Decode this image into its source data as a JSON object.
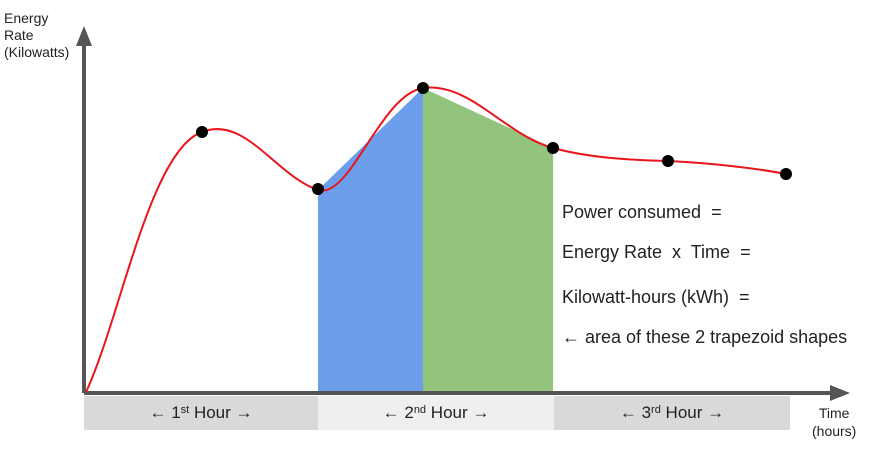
{
  "axes": {
    "y_label_line1": "Energy",
    "y_label_line2": "Rate",
    "y_label_line3": "(Kilowatts)",
    "x_label_line1": "Time",
    "x_label_line2": "(hours)"
  },
  "bands": [
    {
      "prefix": "← 1",
      "sup": "st",
      "suffix": " Hour →"
    },
    {
      "prefix": "← 2",
      "sup": "nd",
      "suffix": " Hour →"
    },
    {
      "prefix": "← 3",
      "sup": "rd",
      "suffix": " Hour →"
    }
  ],
  "notes": {
    "line1": "Power consumed  =",
    "line2": "Energy Rate  x  Time  =",
    "line3": "Kilowatt-hours (kWh)  =",
    "line4": "← area of these 2 trapezoid shapes"
  },
  "colors": {
    "curve": "#e8161b",
    "trapezoid_1": "#6d9eeb",
    "trapezoid_2": "#93c47d",
    "axis": "#555555",
    "point": "#000000"
  }
}
